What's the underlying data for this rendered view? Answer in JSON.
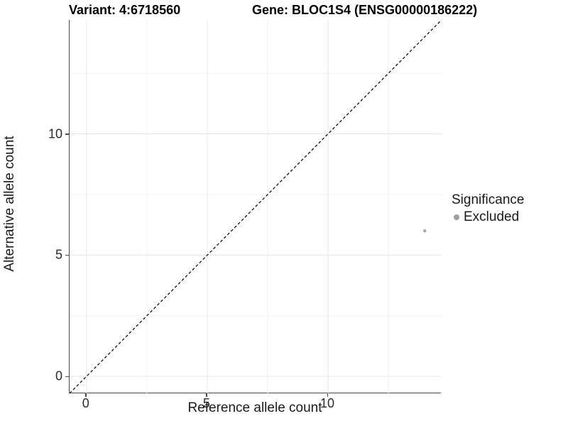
{
  "titles": {
    "variant": "Variant: 4:6718560",
    "gene": "Gene: BLOC1S4 (ENSG00000186222)"
  },
  "axes": {
    "x": {
      "label": "Reference allele count"
    },
    "y": {
      "label": "Alternative allele count"
    }
  },
  "legend": {
    "title": "Significance",
    "items": [
      {
        "label": "Excluded",
        "color": "#9e9e9e"
      }
    ]
  },
  "colors": {
    "background": "#ffffff",
    "grid_major": "#e6e6e6",
    "grid_minor": "#f2f2f2",
    "axis_line": "#4a4a4a",
    "reference_line": "#000000",
    "point": "#a6a6a6",
    "text": "#1a1a1a"
  },
  "chart_data": {
    "type": "scatter",
    "title": "Variant: 4:6718560   Gene: BLOC1S4 (ENSG00000186222)",
    "xlabel": "Reference allele count",
    "ylabel": "Alternative allele count",
    "xlim": [
      -0.7,
      14.7
    ],
    "ylim": [
      -0.7,
      14.7
    ],
    "x_ticks": [
      0,
      5,
      10
    ],
    "y_ticks": [
      0,
      5,
      10
    ],
    "x_minor_ticks": [
      2.5,
      7.5,
      12.5
    ],
    "y_minor_ticks": [
      2.5,
      7.5,
      12.5
    ],
    "grid": "major+minor",
    "legend_position": "right",
    "series": [
      {
        "name": "Excluded",
        "color": "#a6a6a6",
        "point_radius": 2.2,
        "points": [
          {
            "x": 14,
            "y": 6
          }
        ]
      }
    ],
    "reference_line": {
      "type": "identity",
      "style": "dashed",
      "color": "#000000"
    }
  }
}
